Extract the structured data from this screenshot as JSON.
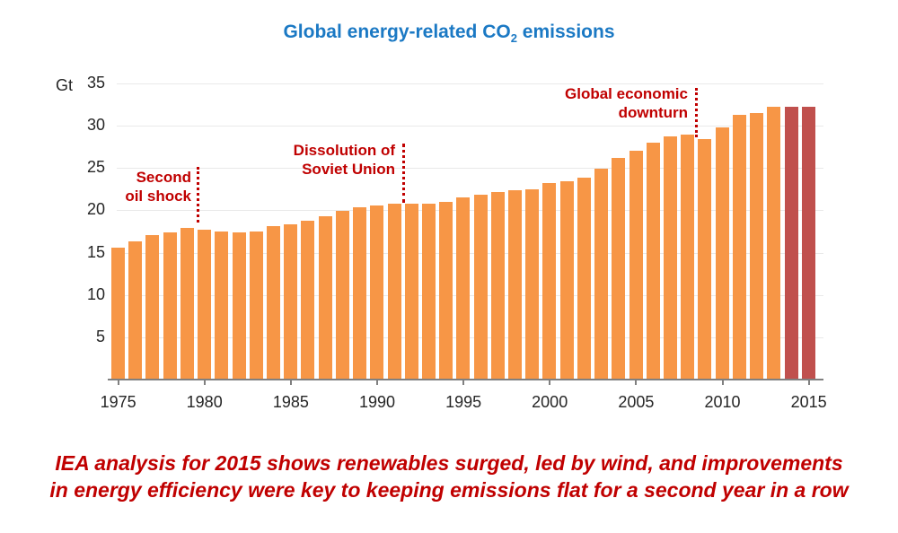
{
  "title": {
    "prefix": "Global energy-related CO",
    "subscript": "2",
    "suffix": " emissions",
    "color": "#1b79c4"
  },
  "chart_data": {
    "type": "bar",
    "title": "Global energy-related CO2 emissions",
    "unit_label": "Gt",
    "x": [
      1975,
      1976,
      1977,
      1978,
      1979,
      1980,
      1981,
      1982,
      1983,
      1984,
      1985,
      1986,
      1987,
      1988,
      1989,
      1990,
      1991,
      1992,
      1993,
      1994,
      1995,
      1996,
      1997,
      1998,
      1999,
      2000,
      2001,
      2002,
      2003,
      2004,
      2005,
      2006,
      2007,
      2008,
      2009,
      2010,
      2011,
      2012,
      2013,
      2014,
      2015
    ],
    "values": [
      15.5,
      16.3,
      17.0,
      17.3,
      17.9,
      17.7,
      17.5,
      17.3,
      17.5,
      18.1,
      18.3,
      18.7,
      19.3,
      19.9,
      20.3,
      20.5,
      20.7,
      20.7,
      20.7,
      20.9,
      21.5,
      21.8,
      22.1,
      22.3,
      22.4,
      23.2,
      23.4,
      23.8,
      24.9,
      26.1,
      27.0,
      27.9,
      28.7,
      28.9,
      28.3,
      29.7,
      31.2,
      31.4,
      32.1,
      32.2,
      32.2
    ],
    "ylim": [
      0,
      35
    ],
    "yticks": [
      35,
      30,
      25,
      20,
      15,
      10,
      5
    ],
    "xticks": [
      1975,
      1980,
      1985,
      1990,
      1995,
      2000,
      2005,
      2010,
      2015
    ],
    "grid": true,
    "bar_color": "#F79646",
    "highlight_color": "#C0504D",
    "highlight_years": [
      2014,
      2015
    ],
    "annotations": [
      {
        "line1": "Second",
        "line2": "oil shock",
        "at_year": 1980
      },
      {
        "line1": "Dissolution of",
        "line2": "Soviet Union",
        "at_year": 1992
      },
      {
        "line1": "Global economic",
        "line2": "downturn",
        "at_year": 2009
      }
    ],
    "annotation_color": "#C00000"
  },
  "caption": {
    "line1": "IEA analysis for 2015 shows renewables surged, led by wind, and improvements",
    "line2": "in energy efficiency were key to keeping emissions flat for a second year in a row",
    "color": "#C00000"
  }
}
